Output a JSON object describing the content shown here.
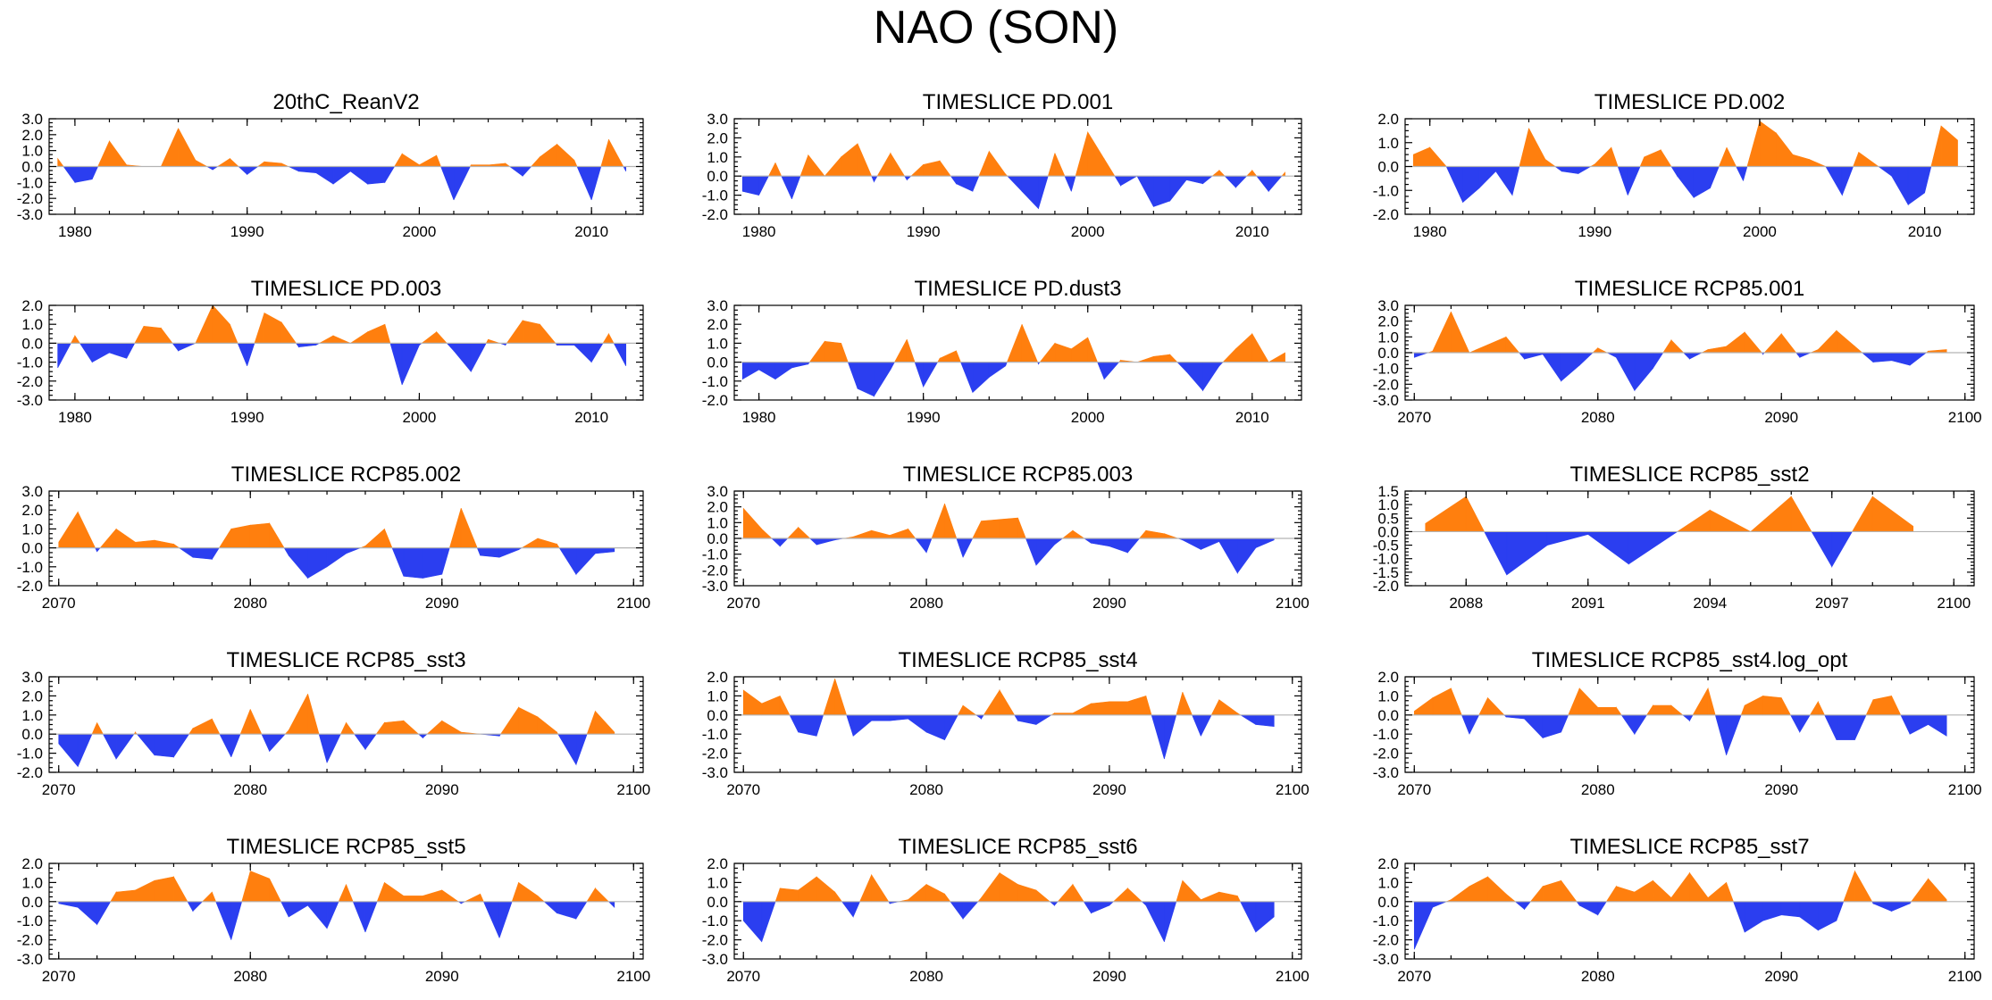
{
  "figure": {
    "title": "NAO (SON)",
    "colors": {
      "positive": "#ff7f0e",
      "negative": "#2b3ef0",
      "zero": "#b4b4b4"
    }
  },
  "chart_data": [
    {
      "type": "area",
      "title": "20thC_ReanV2",
      "ylim": [
        -3,
        3
      ],
      "ytick_values": [
        3,
        2,
        1,
        0,
        -1,
        -2,
        -3
      ],
      "yticks": [
        "3.0",
        "2.0",
        "1.0",
        "0.0",
        "-1.0",
        "-2.0",
        "-3.0"
      ],
      "xlim": [
        1978.5,
        2013
      ],
      "xtick_values": [
        1980,
        1990,
        2000,
        2010
      ],
      "xticks": [
        "1980",
        "1990",
        "2000",
        "2010"
      ],
      "x_start": 1979,
      "values": [
        0.5,
        -1.0,
        -0.8,
        1.6,
        0.1,
        0.0,
        0.0,
        2.4,
        0.4,
        -0.2,
        0.5,
        -0.5,
        0.3,
        0.2,
        -0.3,
        -0.4,
        -1.1,
        -0.3,
        -1.1,
        -1.0,
        0.8,
        0.1,
        0.7,
        -2.1,
        0.1,
        0.1,
        0.2,
        -0.6,
        0.6,
        1.4,
        0.4,
        -2.1,
        1.7,
        -0.3
      ]
    },
    {
      "type": "area",
      "title": "TIMESLICE PD.001",
      "ylim": [
        -2,
        3
      ],
      "ytick_values": [
        3,
        2,
        1,
        0,
        -1,
        -2
      ],
      "yticks": [
        "3.0",
        "2.0",
        "1.0",
        "0.0",
        "-1.0",
        "-2.0"
      ],
      "xlim": [
        1978.5,
        2013
      ],
      "xtick_values": [
        1980,
        1990,
        2000,
        2010
      ],
      "xticks": [
        "1980",
        "1990",
        "2000",
        "2010"
      ],
      "x_start": 1979,
      "values": [
        -0.8,
        -1.0,
        0.7,
        -1.2,
        1.1,
        0.0,
        1.0,
        1.7,
        -0.3,
        1.2,
        -0.2,
        0.6,
        0.8,
        -0.4,
        -0.8,
        1.3,
        0.1,
        -0.8,
        -1.7,
        1.2,
        -0.8,
        2.3,
        0.9,
        -0.5,
        0.0,
        -1.6,
        -1.3,
        -0.2,
        -0.4,
        0.3,
        -0.6,
        0.3,
        -0.8,
        0.2
      ]
    },
    {
      "type": "area",
      "title": "TIMESLICE PD.002",
      "ylim": [
        -2,
        2
      ],
      "ytick_values": [
        2,
        1,
        0,
        -1,
        -2
      ],
      "yticks": [
        "2.0",
        "1.0",
        "0.0",
        "-1.0",
        "-2.0"
      ],
      "xlim": [
        1978.5,
        2013
      ],
      "xtick_values": [
        1980,
        1990,
        2000,
        2010
      ],
      "xticks": [
        "1980",
        "1990",
        "2000",
        "2010"
      ],
      "x_start": 1979,
      "values": [
        0.5,
        0.8,
        0.0,
        -1.5,
        -0.9,
        -0.2,
        -1.2,
        1.6,
        0.3,
        -0.2,
        -0.3,
        0.1,
        0.8,
        -1.2,
        0.4,
        0.7,
        -0.4,
        -1.3,
        -0.9,
        0.8,
        -0.6,
        1.9,
        1.4,
        0.5,
        0.3,
        0.0,
        -1.2,
        0.6,
        0.1,
        -0.4,
        -1.6,
        -1.1,
        1.7,
        1.1
      ]
    },
    {
      "type": "area",
      "title": "TIMESLICE PD.003",
      "ylim": [
        -3,
        2
      ],
      "ytick_values": [
        2,
        1,
        0,
        -1,
        -2,
        -3
      ],
      "yticks": [
        "2.0",
        "1.0",
        "0.0",
        "-1.0",
        "-2.0",
        "-3.0"
      ],
      "xlim": [
        1978.5,
        2013
      ],
      "xtick_values": [
        1980,
        1990,
        2000,
        2010
      ],
      "xticks": [
        "1980",
        "1990",
        "2000",
        "2010"
      ],
      "x_start": 1979,
      "values": [
        -1.3,
        0.4,
        -1.0,
        -0.5,
        -0.8,
        0.9,
        0.8,
        -0.4,
        0.0,
        2.0,
        1.0,
        -1.2,
        1.6,
        1.1,
        -0.2,
        -0.1,
        0.4,
        0.0,
        0.6,
        1.0,
        -2.2,
        -0.1,
        0.6,
        -0.4,
        -1.5,
        0.2,
        -0.1,
        1.2,
        1.0,
        -0.1,
        -0.1,
        -1.0,
        0.5,
        -1.2
      ]
    },
    {
      "type": "area",
      "title": "TIMESLICE PD.dust3",
      "ylim": [
        -2,
        3
      ],
      "ytick_values": [
        3,
        2,
        1,
        0,
        -1,
        -2
      ],
      "yticks": [
        "3.0",
        "2.0",
        "1.0",
        "0.0",
        "-1.0",
        "-2.0"
      ],
      "xlim": [
        1978.5,
        2013
      ],
      "xtick_values": [
        1980,
        1990,
        2000,
        2010
      ],
      "xticks": [
        "1980",
        "1990",
        "2000",
        "2010"
      ],
      "x_start": 1979,
      "values": [
        -0.9,
        -0.4,
        -0.9,
        -0.3,
        -0.1,
        1.1,
        1.0,
        -1.4,
        -1.8,
        -0.4,
        1.2,
        -1.3,
        0.2,
        0.6,
        -1.6,
        -0.8,
        -0.2,
        2.0,
        -0.1,
        1.0,
        0.7,
        1.3,
        -0.9,
        0.1,
        0.0,
        0.3,
        0.4,
        -0.5,
        -1.5,
        -0.2,
        0.7,
        1.5,
        0.0,
        0.5
      ]
    },
    {
      "type": "area",
      "title": "TIMESLICE RCP85.001",
      "ylim": [
        -3,
        3
      ],
      "ytick_values": [
        3,
        2,
        1,
        0,
        -1,
        -2,
        -3
      ],
      "yticks": [
        "3.0",
        "2.0",
        "1.0",
        "0.0",
        "-1.0",
        "-2.0",
        "-3.0"
      ],
      "xlim": [
        2069.5,
        2100.5
      ],
      "xtick_values": [
        2070,
        2080,
        2090,
        2100
      ],
      "xticks": [
        "2070",
        "2080",
        "2090",
        "2100"
      ],
      "x_start": 2070,
      "values": [
        -0.3,
        0.1,
        2.6,
        0.0,
        0.5,
        1.0,
        -0.4,
        -0.1,
        -1.8,
        -0.8,
        0.3,
        -0.3,
        -2.4,
        -1.0,
        0.8,
        -0.4,
        0.2,
        0.4,
        1.3,
        -0.1,
        1.2,
        -0.3,
        0.2,
        1.4,
        0.4,
        -0.6,
        -0.5,
        -0.8,
        0.1,
        0.2
      ]
    },
    {
      "type": "area",
      "title": "TIMESLICE RCP85.002",
      "ylim": [
        -2,
        3
      ],
      "ytick_values": [
        3,
        2,
        1,
        0,
        -1,
        -2
      ],
      "yticks": [
        "3.0",
        "2.0",
        "1.0",
        "0.0",
        "-1.0",
        "-2.0"
      ],
      "xlim": [
        2069.5,
        2100.5
      ],
      "xtick_values": [
        2070,
        2080,
        2090,
        2100
      ],
      "xticks": [
        "2070",
        "2080",
        "2090",
        "2100"
      ],
      "x_start": 2070,
      "values": [
        0.3,
        1.9,
        -0.2,
        1.0,
        0.3,
        0.4,
        0.2,
        -0.5,
        -0.6,
        1.0,
        1.2,
        1.3,
        -0.4,
        -1.6,
        -1.0,
        -0.3,
        0.1,
        1.0,
        -1.5,
        -1.6,
        -1.4,
        2.1,
        -0.4,
        -0.5,
        -0.1,
        0.5,
        0.2,
        -1.4,
        -0.3,
        -0.2
      ]
    },
    {
      "type": "area",
      "title": "TIMESLICE RCP85.003",
      "ylim": [
        -3,
        3
      ],
      "ytick_values": [
        3,
        2,
        1,
        0,
        -1,
        -2,
        -3
      ],
      "yticks": [
        "3.0",
        "2.0",
        "1.0",
        "0.0",
        "-1.0",
        "-2.0",
        "-3.0"
      ],
      "xlim": [
        2069.5,
        2100.5
      ],
      "xtick_values": [
        2070,
        2080,
        2090,
        2100
      ],
      "xticks": [
        "2070",
        "2080",
        "2090",
        "2100"
      ],
      "x_start": 2070,
      "values": [
        1.9,
        0.6,
        -0.5,
        0.7,
        -0.4,
        -0.1,
        0.1,
        0.5,
        0.2,
        0.6,
        -0.9,
        2.2,
        -1.2,
        1.1,
        1.2,
        1.3,
        -1.7,
        -0.4,
        0.5,
        -0.3,
        -0.5,
        -0.9,
        0.5,
        0.3,
        -0.1,
        -0.7,
        -0.2,
        -2.2,
        -0.6,
        -0.1
      ]
    },
    {
      "type": "area",
      "title": "TIMESLICE RCP85_sst2",
      "ylim": [
        -2,
        1.5
      ],
      "ytick_values": [
        1.5,
        1,
        0.5,
        0,
        -0.5,
        -1,
        -1.5,
        -2
      ],
      "yticks": [
        "1.5",
        "1.0",
        "0.5",
        "0.0",
        "-0.5",
        "-1.0",
        "-1.5",
        "-2.0"
      ],
      "xlim": [
        2086.5,
        2100.5
      ],
      "xtick_values": [
        2088,
        2091,
        2094,
        2097,
        2100
      ],
      "xticks": [
        "2088",
        "2091",
        "2094",
        "2097",
        "2100"
      ],
      "x_start": 2087,
      "values": [
        0.3,
        1.3,
        -1.6,
        -0.5,
        -0.1,
        -1.2,
        -0.2,
        0.8,
        0.0,
        1.3,
        -1.3,
        1.3,
        0.2
      ]
    },
    {
      "type": "area",
      "title": "TIMESLICE RCP85_sst3",
      "ylim": [
        -2,
        3
      ],
      "ytick_values": [
        3,
        2,
        1,
        0,
        -1,
        -2
      ],
      "yticks": [
        "3.0",
        "2.0",
        "1.0",
        "0.0",
        "-1.0",
        "-2.0"
      ],
      "xlim": [
        2069.5,
        2100.5
      ],
      "xtick_values": [
        2070,
        2080,
        2090,
        2100
      ],
      "xticks": [
        "2070",
        "2080",
        "2090",
        "2100"
      ],
      "x_start": 2070,
      "values": [
        -0.5,
        -1.7,
        0.6,
        -1.3,
        0.1,
        -1.1,
        -1.2,
        0.3,
        0.8,
        -1.2,
        1.3,
        -0.9,
        0.2,
        2.1,
        -1.5,
        0.6,
        -0.8,
        0.6,
        0.7,
        -0.2,
        0.7,
        0.1,
        0.0,
        -0.1,
        1.4,
        0.9,
        0.1,
        -1.6,
        1.2,
        0.1
      ]
    },
    {
      "type": "area",
      "title": "TIMESLICE RCP85_sst4",
      "ylim": [
        -3,
        2
      ],
      "ytick_values": [
        2,
        1,
        0,
        -1,
        -2,
        -3
      ],
      "yticks": [
        "2.0",
        "1.0",
        "0.0",
        "-1.0",
        "-2.0",
        "-3.0"
      ],
      "xlim": [
        2069.5,
        2100.5
      ],
      "xtick_values": [
        2070,
        2080,
        2090,
        2100
      ],
      "xticks": [
        "2070",
        "2080",
        "2090",
        "2100"
      ],
      "x_start": 2070,
      "values": [
        1.3,
        0.6,
        1.0,
        -0.9,
        -1.1,
        1.9,
        -1.1,
        -0.3,
        -0.3,
        -0.2,
        -0.9,
        -1.3,
        0.5,
        -0.2,
        1.3,
        -0.3,
        -0.5,
        0.1,
        0.1,
        0.6,
        0.7,
        0.7,
        1.0,
        -2.3,
        1.2,
        -1.1,
        0.8,
        0.1,
        -0.5,
        -0.6
      ]
    },
    {
      "type": "area",
      "title": "TIMESLICE RCP85_sst4.log_opt",
      "ylim": [
        -3,
        2
      ],
      "ytick_values": [
        2,
        1,
        0,
        -1,
        -2,
        -3
      ],
      "yticks": [
        "2.0",
        "1.0",
        "0.0",
        "-1.0",
        "-2.0",
        "-3.0"
      ],
      "xlim": [
        2069.5,
        2100.5
      ],
      "xtick_values": [
        2070,
        2080,
        2090,
        2100
      ],
      "xticks": [
        "2070",
        "2080",
        "2090",
        "2100"
      ],
      "x_start": 2070,
      "values": [
        0.2,
        0.9,
        1.4,
        -1.0,
        0.9,
        -0.1,
        -0.2,
        -1.2,
        -0.9,
        1.4,
        0.4,
        0.4,
        -1.0,
        0.5,
        0.5,
        -0.3,
        1.4,
        -2.1,
        0.5,
        1.0,
        0.9,
        -0.9,
        0.7,
        -1.3,
        -1.3,
        0.8,
        1.0,
        -1.0,
        -0.5,
        -1.1
      ]
    },
    {
      "type": "area",
      "title": "TIMESLICE RCP85_sst5",
      "ylim": [
        -3,
        2
      ],
      "ytick_values": [
        2,
        1,
        0,
        -1,
        -2,
        -3
      ],
      "yticks": [
        "2.0",
        "1.0",
        "0.0",
        "-1.0",
        "-2.0",
        "-3.0"
      ],
      "xlim": [
        2069.5,
        2100.5
      ],
      "xtick_values": [
        2070,
        2080,
        2090,
        2100
      ],
      "xticks": [
        "2070",
        "2080",
        "2090",
        "2100"
      ],
      "x_start": 2070,
      "values": [
        -0.1,
        -0.3,
        -1.2,
        0.5,
        0.6,
        1.1,
        1.3,
        -0.5,
        0.5,
        -2.0,
        1.6,
        1.2,
        -0.8,
        -0.2,
        -1.4,
        0.9,
        -1.6,
        1.0,
        0.3,
        0.3,
        0.6,
        -0.1,
        0.4,
        -1.9,
        1.0,
        0.3,
        -0.6,
        -0.9,
        0.7,
        -0.3
      ]
    },
    {
      "type": "area",
      "title": "TIMESLICE RCP85_sst6",
      "ylim": [
        -3,
        2
      ],
      "ytick_values": [
        2,
        1,
        0,
        -1,
        -2,
        -3
      ],
      "yticks": [
        "2.0",
        "1.0",
        "0.0",
        "-1.0",
        "-2.0",
        "-3.0"
      ],
      "xlim": [
        2069.5,
        2100.5
      ],
      "xtick_values": [
        2070,
        2080,
        2090,
        2100
      ],
      "xticks": [
        "2070",
        "2080",
        "2090",
        "2100"
      ],
      "x_start": 2070,
      "values": [
        -1.0,
        -2.1,
        0.7,
        0.6,
        1.3,
        0.5,
        -0.8,
        1.4,
        -0.1,
        0.1,
        0.9,
        0.4,
        -0.9,
        0.2,
        1.5,
        0.9,
        0.6,
        -0.2,
        0.9,
        -0.6,
        -0.2,
        0.7,
        -0.2,
        -2.1,
        1.1,
        0.1,
        0.5,
        0.3,
        -1.6,
        -0.8
      ]
    },
    {
      "type": "area",
      "title": "TIMESLICE RCP85_sst7",
      "ylim": [
        -3,
        2
      ],
      "ytick_values": [
        2,
        1,
        0,
        -1,
        -2,
        -3
      ],
      "yticks": [
        "2.0",
        "1.0",
        "0.0",
        "-1.0",
        "-2.0",
        "-3.0"
      ],
      "xlim": [
        2069.5,
        2100.5
      ],
      "xtick_values": [
        2070,
        2080,
        2090,
        2100
      ],
      "xticks": [
        "2070",
        "2080",
        "2090",
        "2100"
      ],
      "x_start": 2070,
      "values": [
        -2.5,
        -0.3,
        0.1,
        0.8,
        1.3,
        0.4,
        -0.4,
        0.8,
        1.1,
        -0.2,
        -0.7,
        0.8,
        0.5,
        1.1,
        0.2,
        1.5,
        0.2,
        1.0,
        -1.6,
        -1.0,
        -0.7,
        -0.8,
        -1.5,
        -1.0,
        1.6,
        -0.1,
        -0.5,
        -0.1,
        1.2,
        0.1
      ]
    }
  ]
}
